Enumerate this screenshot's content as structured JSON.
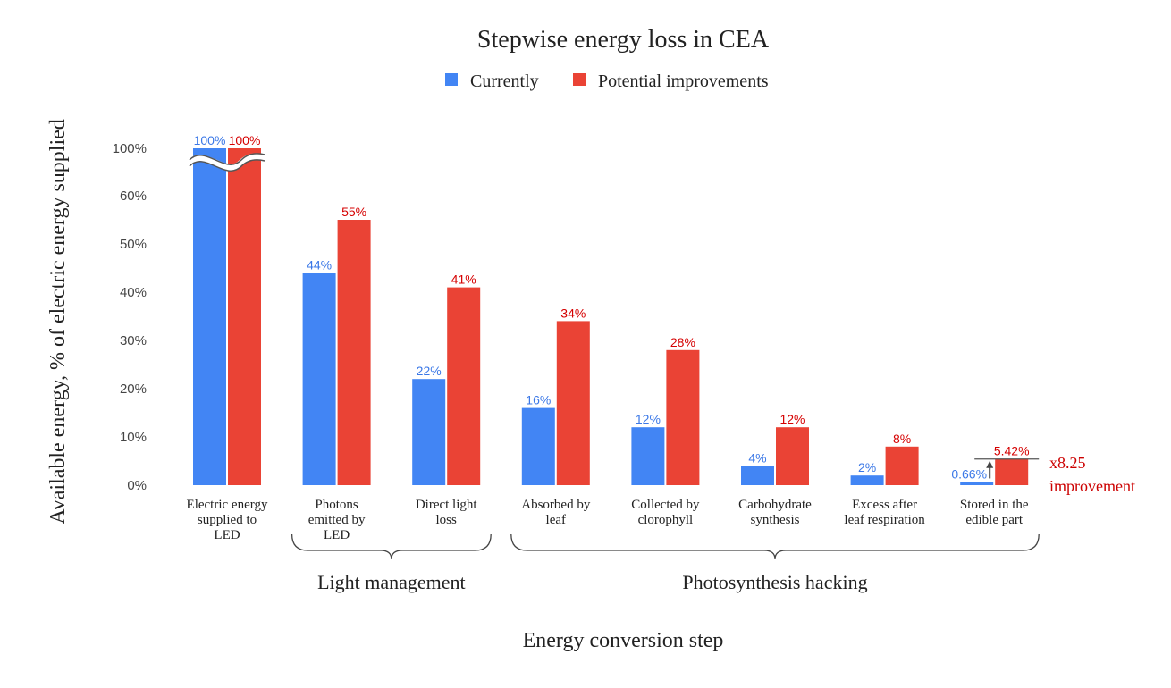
{
  "chart_data": {
    "type": "bar",
    "title": "Stepwise energy loss in CEA",
    "xlabel": "Energy conversion step",
    "ylabel": "Available energy, % of electric energy supplied",
    "y_ticks": [
      "0%",
      "10%",
      "20%",
      "30%",
      "40%",
      "50%",
      "60%",
      "100%"
    ],
    "axis_break": "between 60% and 100%",
    "categories": [
      [
        "Electric energy",
        "supplied to",
        "LED"
      ],
      [
        "Photons",
        "emitted by",
        "LED"
      ],
      [
        "Direct light",
        "loss"
      ],
      [
        "Absorbed by",
        "leaf"
      ],
      [
        "Collected by",
        "clorophyll"
      ],
      [
        "Carbohydrate",
        "synthesis"
      ],
      [
        "Excess after",
        "leaf respiration"
      ],
      [
        "Stored in the",
        "edible part"
      ]
    ],
    "series": [
      {
        "name": "Currently",
        "color": "#4285f4",
        "values": [
          100,
          44,
          22,
          16,
          12,
          4,
          2,
          0.66
        ],
        "labels": [
          "100%",
          "44%",
          "22%",
          "16%",
          "12%",
          "4%",
          "2%",
          "0.66%"
        ]
      },
      {
        "name": "Potential improvements",
        "color": "#ea4335",
        "values": [
          100,
          55,
          41,
          34,
          28,
          12,
          8,
          5.42
        ],
        "labels": [
          "100%",
          "55%",
          "41%",
          "34%",
          "28%",
          "12%",
          "8%",
          "5.42%"
        ]
      }
    ],
    "groups": [
      {
        "label": "Light management",
        "from_category": 1,
        "to_category": 2
      },
      {
        "label": "Photosynthesis hacking",
        "from_category": 3,
        "to_category": 7
      }
    ],
    "annotation": {
      "lines": [
        "x8.25",
        "improvement"
      ],
      "color": "#cc0000",
      "category": 7
    },
    "legend": "top-center",
    "grid": false
  }
}
